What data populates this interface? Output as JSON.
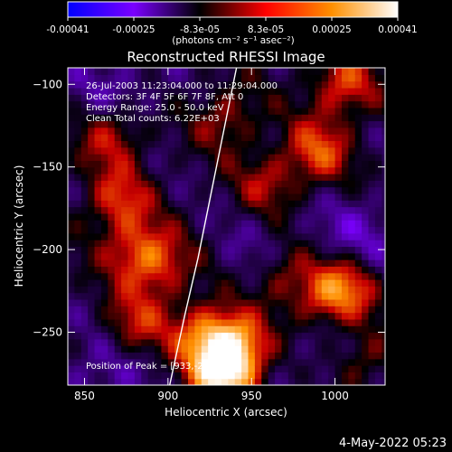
{
  "chart_data": {
    "type": "heatmap",
    "title": "Reconstructed RHESSI Image",
    "xlabel": "Heliocentric X (arcsec)",
    "ylabel": "Heliocentric Y (arcsec)",
    "xlim": [
      840,
      1030
    ],
    "ylim": [
      -282,
      -90
    ],
    "x_ticks": [
      850,
      900,
      950,
      1000
    ],
    "y_ticks": [
      -100,
      -150,
      -200,
      -250
    ],
    "x_tick_labels": [
      "850",
      "900",
      "950",
      "1000"
    ],
    "y_tick_labels": [
      "−100",
      "−150",
      "−200",
      "−250"
    ],
    "colorbar": {
      "min": -0.00041,
      "max": 0.00041,
      "tick_labels": [
        "-0.00041",
        "-0.00025",
        "-8.3e-05",
        "8.3e-05",
        "0.00025",
        "0.00041"
      ],
      "units": "(photons cm⁻² s⁻¹ asec⁻²)",
      "colors": [
        "#0000ff",
        "#7a00ff",
        "#000000",
        "#ff0000",
        "#ff9000",
        "#ffffff"
      ]
    },
    "annotations": [
      "26-Jul-2003 11:23:04.000 to 11:29:04.000",
      "Detectors: 3F 4F 5F 6F 7F 8F, Att 0",
      "Energy Range: 25.0 - 50.0 keV",
      "Clean    Total counts: 6.22E+03"
    ],
    "peak_label": "Position of Peak = [933,-274]",
    "peak_position": [
      933,
      -274
    ],
    "limb_curve": {
      "x": [
        901,
        910,
        918,
        925,
        931,
        937,
        941
      ],
      "y": [
        -282,
        -240,
        -205,
        -170,
        -140,
        -110,
        -90
      ]
    },
    "bright_sources": [
      {
        "x": 933,
        "y": -274,
        "value": 0.00041
      },
      {
        "x": 940,
        "y": -257,
        "value": 0.0003
      },
      {
        "x": 1005,
        "y": -100,
        "value": 0.00022
      },
      {
        "x": 990,
        "y": -140,
        "value": 0.00022
      },
      {
        "x": 867,
        "y": -130,
        "value": 0.0002
      },
      {
        "x": 870,
        "y": -170,
        "value": 0.0002
      },
      {
        "x": 880,
        "y": -200,
        "value": 0.00018
      },
      {
        "x": 895,
        "y": -210,
        "value": 0.00018
      },
      {
        "x": 920,
        "y": -250,
        "value": 0.0002
      },
      {
        "x": 960,
        "y": -160,
        "value": 0.00015
      },
      {
        "x": 970,
        "y": -215,
        "value": 0.00018
      },
      {
        "x": 995,
        "y": -230,
        "value": 0.00022
      },
      {
        "x": 1010,
        "y": -220,
        "value": 0.0002
      },
      {
        "x": 1015,
        "y": -265,
        "value": 0.00018
      },
      {
        "x": 880,
        "y": -245,
        "value": 0.00018
      },
      {
        "x": 935,
        "y": -120,
        "value": 0.00015
      }
    ],
    "dim_regions": [
      {
        "x": 870,
        "y": -105,
        "value": -0.0001
      },
      {
        "x": 1015,
        "y": -195,
        "value": -0.00012
      },
      {
        "x": 1000,
        "y": -260,
        "value": -0.0001
      },
      {
        "x": 860,
        "y": -275,
        "value": -0.0001
      },
      {
        "x": 960,
        "y": -205,
        "value": -8e-05
      }
    ]
  },
  "footer": {
    "timestamp": "4-May-2022 05:23"
  }
}
